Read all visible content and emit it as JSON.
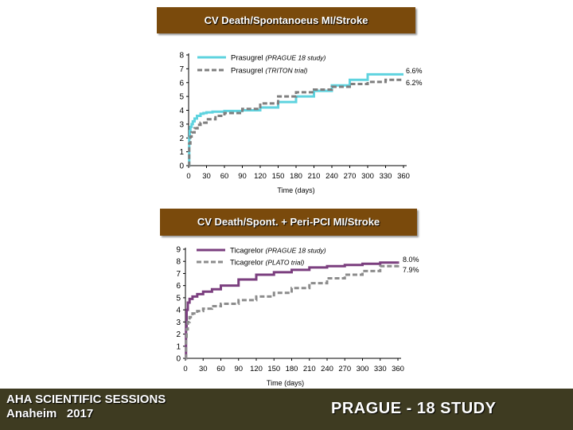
{
  "chart_data": [
    {
      "type": "line",
      "title": "CV Death/Spontanoeus MI/Stroke",
      "xlabel": "Time (days)",
      "ylabel": "",
      "x_ticks": [
        "0",
        "30",
        "60",
        "90",
        "120",
        "150",
        "180",
        "210",
        "240",
        "270",
        "300",
        "330",
        "360"
      ],
      "y_ticks": [
        "0",
        "1",
        "2",
        "3",
        "4",
        "5",
        "6",
        "7",
        "8"
      ],
      "xlim": [
        0,
        360
      ],
      "ylim": [
        0,
        8
      ],
      "legend": [
        {
          "name": "Prasugrel",
          "note": "(PRAGUE 18 study)",
          "color": "#5fd3df",
          "style": "solid"
        },
        {
          "name": "Prasugrel",
          "note": "(TRITON trial)",
          "color": "#7f7f7f",
          "style": "dashed"
        }
      ],
      "end_labels": [
        "6.6%",
        "6.2%"
      ],
      "series": [
        {
          "name": "Prasugrel (PRAGUE 18 study)",
          "color": "#5fd3df",
          "dashed": false,
          "x": [
            0,
            1,
            2,
            3,
            5,
            7,
            10,
            14,
            20,
            25,
            30,
            40,
            60,
            90,
            120,
            150,
            180,
            210,
            240,
            270,
            300,
            330,
            360
          ],
          "y": [
            0,
            2.0,
            2.5,
            2.8,
            3.0,
            3.2,
            3.4,
            3.6,
            3.75,
            3.8,
            3.85,
            3.9,
            3.95,
            4.0,
            4.2,
            4.6,
            5.0,
            5.4,
            5.8,
            6.2,
            6.6,
            6.6,
            6.6
          ]
        },
        {
          "name": "Prasugrel (TRITON trial)",
          "color": "#7f7f7f",
          "dashed": true,
          "x": [
            0,
            1,
            3,
            5,
            10,
            15,
            20,
            30,
            45,
            60,
            90,
            120,
            150,
            180,
            210,
            240,
            270,
            300,
            330,
            360
          ],
          "y": [
            0,
            1.6,
            2.1,
            2.4,
            2.7,
            2.95,
            3.1,
            3.35,
            3.6,
            3.8,
            4.1,
            4.5,
            5.0,
            5.3,
            5.5,
            5.7,
            5.9,
            6.05,
            6.2,
            6.2
          ]
        }
      ]
    },
    {
      "type": "line",
      "title": "CV Death/Spont. + Peri-PCI MI/Stroke",
      "xlabel": "Time (days)",
      "ylabel": "",
      "x_ticks": [
        "0",
        "30",
        "60",
        "90",
        "120",
        "150",
        "180",
        "210",
        "240",
        "270",
        "300",
        "330",
        "360"
      ],
      "y_ticks": [
        "0",
        "1",
        "2",
        "3",
        "4",
        "5",
        "6",
        "7",
        "8",
        "9"
      ],
      "xlim": [
        0,
        360
      ],
      "ylim": [
        0,
        9
      ],
      "legend": [
        {
          "name": "Ticagrelor",
          "note": "(PRAGUE 18 study)",
          "color": "#7b3f7f",
          "style": "solid"
        },
        {
          "name": "Ticagrelor",
          "note": "(PLATO trial)",
          "color": "#8c8c8c",
          "style": "dashed"
        }
      ],
      "end_labels": [
        "8.0%",
        "7.9%"
      ],
      "series": [
        {
          "name": "Ticagrelor (PRAGUE 18 study)",
          "color": "#7b3f7f",
          "dashed": false,
          "x": [
            0,
            1,
            2,
            4,
            7,
            12,
            20,
            30,
            45,
            60,
            90,
            120,
            150,
            180,
            210,
            240,
            270,
            300,
            330,
            360
          ],
          "y": [
            0,
            2.5,
            4.0,
            4.6,
            4.9,
            5.1,
            5.3,
            5.5,
            5.7,
            6.0,
            6.5,
            6.9,
            7.1,
            7.3,
            7.5,
            7.6,
            7.7,
            7.8,
            7.9,
            8.0
          ]
        },
        {
          "name": "Ticagrelor (PLATO trial)",
          "color": "#8c8c8c",
          "dashed": true,
          "x": [
            0,
            1,
            2,
            4,
            7,
            12,
            20,
            30,
            45,
            60,
            90,
            120,
            150,
            180,
            210,
            240,
            270,
            300,
            330,
            360
          ],
          "y": [
            0,
            1.6,
            2.4,
            3.0,
            3.4,
            3.7,
            3.9,
            4.1,
            4.3,
            4.5,
            4.8,
            5.1,
            5.4,
            5.8,
            6.2,
            6.6,
            6.9,
            7.2,
            7.6,
            7.9
          ]
        }
      ]
    }
  ],
  "footer": {
    "left_line1": "AHA SCIENTIFIC SESSIONS",
    "left_line2": "Anaheim   2017",
    "right": "PRAGUE - 18 STUDY"
  }
}
